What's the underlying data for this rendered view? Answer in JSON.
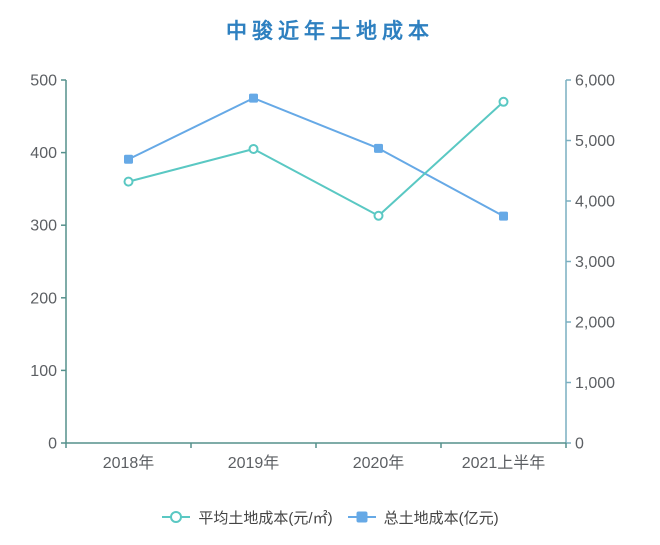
{
  "title": "中骏近年土地成本",
  "colors": {
    "title": "#2e80c0",
    "tick_label": "#5c5f63",
    "legend_text": "#444444",
    "background": "#ffffff"
  },
  "chart_data": {
    "type": "line",
    "title": "中骏近年土地成本",
    "categories": [
      "2018年",
      "2019年",
      "2020年",
      "2021上半年"
    ],
    "series": [
      {
        "name": "平均土地成本(元/㎡)",
        "axis": "left",
        "color": "#5ac8c3",
        "marker": "hollow-circle",
        "values": [
          360,
          405,
          313,
          470
        ]
      },
      {
        "name": "总土地成本(亿元)",
        "axis": "right",
        "color": "#66a9e6",
        "marker": "filled-square",
        "values": [
          4690,
          5700,
          4870,
          3750
        ]
      }
    ],
    "left_axis": {
      "min": 0,
      "max": 500,
      "step": 100,
      "tick_labels": [
        "0",
        "100",
        "200",
        "300",
        "400",
        "500"
      ],
      "line_color": "#55918c"
    },
    "right_axis": {
      "min": 0,
      "max": 6000,
      "step": 1000,
      "tick_labels": [
        "0",
        "1,000",
        "2,000",
        "3,000",
        "4,000",
        "5,000",
        "6,000"
      ],
      "line_color": "#7aafc0"
    },
    "x_axis": {
      "line_color": "#55918c"
    },
    "legend_position": "bottom",
    "grid": false
  }
}
